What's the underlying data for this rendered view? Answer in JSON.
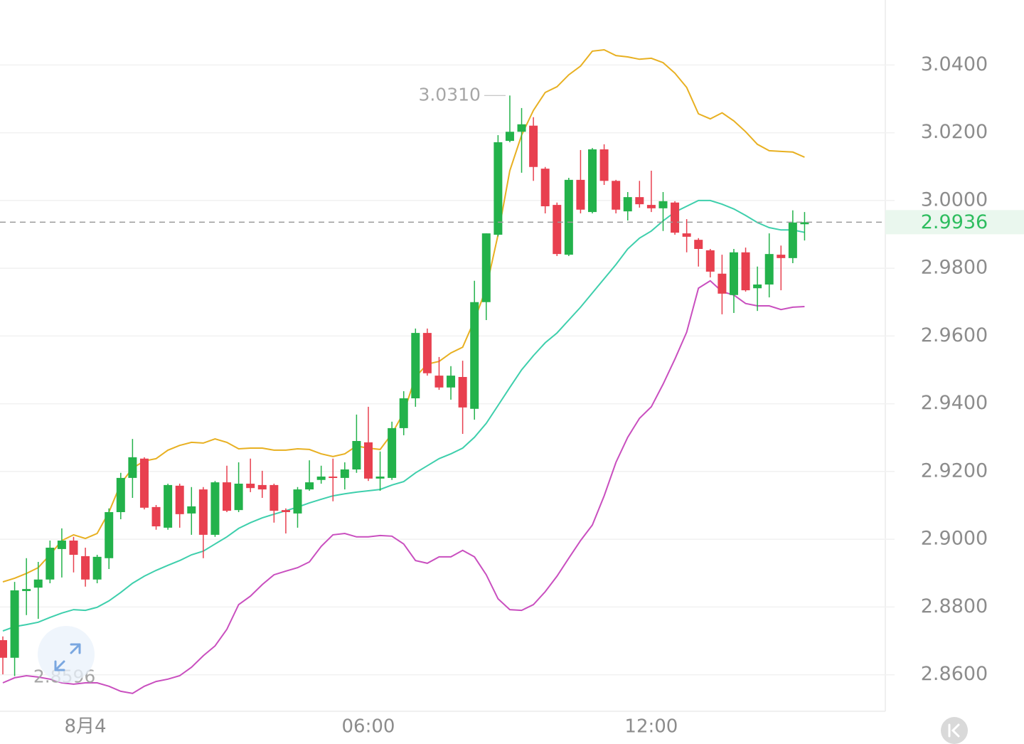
{
  "chart_data": {
    "type": "candlestick",
    "categories": [
      null,
      null,
      null,
      null,
      null,
      null,
      null,
      "8月4",
      null,
      null,
      null,
      null,
      null,
      null,
      null,
      null,
      null,
      null,
      null,
      null,
      null,
      null,
      null,
      null,
      null,
      null,
      null,
      null,
      null,
      null,
      null,
      "06:00",
      null,
      null,
      null,
      null,
      null,
      null,
      null,
      null,
      null,
      null,
      null,
      null,
      null,
      null,
      null,
      null,
      null,
      null,
      null,
      null,
      null,
      null,
      null,
      "12:00",
      null,
      null,
      null,
      null,
      null,
      null,
      null,
      null,
      null,
      null,
      null,
      null,
      null
    ],
    "open": [
      2.8702,
      2.865,
      2.8847,
      2.8857,
      2.8881,
      2.8971,
      2.8996,
      2.895,
      2.8881,
      2.8944,
      2.908,
      2.9181,
      2.9238,
      2.9095,
      2.9034,
      2.9158,
      2.9076,
      2.9147,
      2.9013,
      2.9168,
      2.9086,
      2.9164,
      2.916,
      2.916,
      2.9086,
      2.9076,
      2.9147,
      2.9175,
      2.9185,
      2.9181,
      2.9206,
      2.9286,
      2.9179,
      2.9181,
      2.9328,
      2.9416,
      2.9609,
      2.9483,
      2.9448,
      2.9479,
      2.9385,
      2.97,
      2.9899,
      3.0176,
      3.0203,
      3.0221,
      3.0094,
      2.9987,
      2.984,
      3.0061,
      2.9966,
      3.0151,
      3.0058,
      2.9968,
      3.001,
      2.9987,
      2.9977,
      2.9994,
      2.9903,
      2.9884,
      2.9853,
      2.9784,
      2.9721,
      2.9847,
      2.9741,
      2.9752,
      2.984,
      2.983,
      2.993
    ],
    "high": [
      2.8713,
      2.8874,
      2.8944,
      2.8933,
      2.8996,
      2.9032,
      2.9007,
      2.8975,
      2.8954,
      2.9091,
      2.9196,
      2.9296,
      2.9242,
      2.9101,
      2.9164,
      2.9164,
      2.9154,
      2.9154,
      2.9172,
      2.9217,
      2.9227,
      2.9238,
      2.9202,
      2.9164,
      2.9091,
      2.9154,
      2.9233,
      2.9217,
      2.9238,
      2.9227,
      2.9368,
      2.9391,
      2.9259,
      2.9347,
      2.9437,
      2.9622,
      2.9622,
      2.9538,
      2.9511,
      2.9527,
      2.9763,
      2.9903,
      3.0193,
      3.031,
      3.0273,
      3.0246,
      3.0099,
      2.9994,
      3.0067,
      3.0149,
      3.0155,
      3.0166,
      3.0061,
      3.0025,
      3.0058,
      3.0088,
      3.0025,
      2.9998,
      2.9945,
      2.9889,
      2.9857,
      2.984,
      2.9857,
      2.9861,
      2.9805,
      2.9903,
      2.9867,
      2.9971,
      2.9966
    ],
    "low": [
      2.8601,
      2.8596,
      2.8776,
      2.8765,
      2.887,
      2.8887,
      2.8902,
      2.886,
      2.887,
      2.8912,
      2.9059,
      2.9122,
      2.9088,
      2.9028,
      2.9028,
      2.9034,
      2.9013,
      2.8944,
      2.9007,
      2.908,
      2.908,
      2.9139,
      2.9122,
      2.9049,
      2.9017,
      2.9034,
      2.9143,
      2.9164,
      2.9112,
      2.9147,
      2.9196,
      2.9172,
      2.9143,
      2.9175,
      2.9307,
      2.9391,
      2.9483,
      2.9441,
      2.9412,
      2.9311,
      2.9353,
      2.9647,
      2.9894,
      3.0172,
      3.0082,
      3.0058,
      2.9962,
      2.9836,
      2.9836,
      2.9962,
      2.9962,
      3.0046,
      2.9962,
      2.9941,
      2.9979,
      2.9966,
      2.991,
      2.9899,
      2.9847,
      2.9805,
      2.9773,
      2.9664,
      2.9668,
      2.9731,
      2.9674,
      2.9714,
      2.9735,
      2.9815,
      2.9882
    ],
    "close": [
      2.865,
      2.8849,
      2.8853,
      2.8881,
      2.8975,
      2.8996,
      2.8954,
      2.8881,
      2.8948,
      2.908,
      2.9181,
      2.9242,
      2.9093,
      2.9038,
      2.916,
      2.9074,
      2.9097,
      2.9013,
      2.9168,
      2.9084,
      2.9164,
      2.9151,
      2.9147,
      2.9084,
      2.908,
      2.9147,
      2.9168,
      2.9185,
      2.9181,
      2.9206,
      2.929,
      2.9179,
      2.9185,
      2.9328,
      2.9416,
      2.9609,
      2.949,
      2.9448,
      2.9483,
      2.9389,
      2.97,
      2.9903,
      3.0172,
      3.0203,
      3.0225,
      3.0099,
      2.9983,
      2.9842,
      3.0061,
      2.9973,
      3.0151,
      3.0058,
      2.9973,
      3.001,
      2.9989,
      2.9977,
      2.9998,
      2.9905,
      2.9893,
      2.9857,
      2.979,
      2.9725,
      2.9847,
      2.9735,
      2.9752,
      2.9842,
      2.983,
      2.9935,
      2.9936
    ],
    "up_color": "#23b24b",
    "down_color": "#e8404f",
    "overlays": [
      {
        "color": "#e8b021",
        "values": [
          2.8874,
          2.8885,
          2.8899,
          2.8916,
          2.8954,
          2.8996,
          2.9013,
          2.9002,
          2.9017,
          2.908,
          2.9164,
          2.921,
          2.9231,
          2.9238,
          2.9263,
          2.9277,
          2.9286,
          2.9284,
          2.9296,
          2.9286,
          2.9267,
          2.9269,
          2.9269,
          2.9263,
          2.9263,
          2.9267,
          2.9265,
          2.9252,
          2.9244,
          2.9252,
          2.9275,
          2.9269,
          2.9265,
          2.9311,
          2.9374,
          2.9479,
          2.9517,
          2.9525,
          2.955,
          2.9567,
          2.9647,
          2.9741,
          2.9899,
          3.0088,
          3.0193,
          3.0266,
          3.0319,
          3.0336,
          3.0371,
          3.0397,
          3.0441,
          3.0445,
          3.0428,
          3.0424,
          3.0417,
          3.042,
          3.0407,
          3.0376,
          3.0334,
          3.0256,
          3.0241,
          3.0259,
          3.0235,
          3.0203,
          3.0166,
          3.0147,
          3.0145,
          3.0143,
          3.0128
        ]
      },
      {
        "color": "#3ecfac",
        "values": [
          2.8729,
          2.8742,
          2.8748,
          2.8755,
          2.8769,
          2.8782,
          2.8792,
          2.879,
          2.8799,
          2.8818,
          2.8843,
          2.887,
          2.8891,
          2.8908,
          2.8923,
          2.8937,
          2.8954,
          2.8965,
          2.8986,
          2.9007,
          2.9032,
          2.9049,
          2.9063,
          2.9074,
          2.9084,
          2.9095,
          2.9107,
          2.9118,
          2.9128,
          2.9134,
          2.9139,
          2.9143,
          2.9147,
          2.916,
          2.917,
          2.9196,
          2.9217,
          2.9238,
          2.9252,
          2.9269,
          2.9301,
          2.9342,
          2.9395,
          2.9448,
          2.95,
          2.9542,
          2.958,
          2.9609,
          2.9647,
          2.9685,
          2.9727,
          2.9769,
          2.9811,
          2.9857,
          2.9889,
          2.991,
          2.994,
          2.9966,
          2.9983,
          3.0,
          3.0,
          2.9989,
          2.9975,
          2.9956,
          2.9935,
          2.992,
          2.9913,
          2.9913,
          2.9906
        ]
      },
      {
        "color": "#c94fbf",
        "values": [
          2.8576,
          2.8591,
          2.8597,
          2.8593,
          2.8587,
          2.8576,
          2.8572,
          2.8576,
          2.8576,
          2.8566,
          2.8551,
          2.8545,
          2.8566,
          2.858,
          2.8587,
          2.8597,
          2.8622,
          2.8656,
          2.8685,
          2.8734,
          2.8807,
          2.8832,
          2.8866,
          2.8895,
          2.8906,
          2.8916,
          2.8933,
          2.8979,
          2.9013,
          2.9017,
          2.9007,
          2.9007,
          2.9011,
          2.9009,
          2.8986,
          2.8937,
          2.8929,
          2.8948,
          2.8948,
          2.8967,
          2.8948,
          2.8895,
          2.8824,
          2.8792,
          2.879,
          2.8807,
          2.8845,
          2.8891,
          2.8944,
          2.8996,
          2.9042,
          2.9128,
          2.9227,
          2.9301,
          2.9357,
          2.9391,
          2.9458,
          2.9532,
          2.9611,
          2.9741,
          2.9763,
          2.9731,
          2.9721,
          2.9696,
          2.9689,
          2.9689,
          2.9678,
          2.9685,
          2.9687
        ]
      }
    ],
    "ylim": [
      2.8492,
      3.0592
    ],
    "yticks": [
      {
        "value": 2.86,
        "label": "2.8600"
      },
      {
        "value": 2.88,
        "label": "2.8800"
      },
      {
        "value": 2.9,
        "label": "2.9000"
      },
      {
        "value": 2.92,
        "label": "2.9200"
      },
      {
        "value": 2.94,
        "label": "2.9400"
      },
      {
        "value": 2.96,
        "label": "2.9600"
      },
      {
        "value": 2.98,
        "label": "2.9800"
      },
      {
        "value": 3.0,
        "label": "3.0000"
      },
      {
        "value": 3.02,
        "label": "3.0200"
      },
      {
        "value": 3.04,
        "label": "3.0400"
      }
    ],
    "grid": true,
    "high_label": "3.0310",
    "low_label": "2.8596",
    "last_price_color": "#2ebd5f"
  }
}
